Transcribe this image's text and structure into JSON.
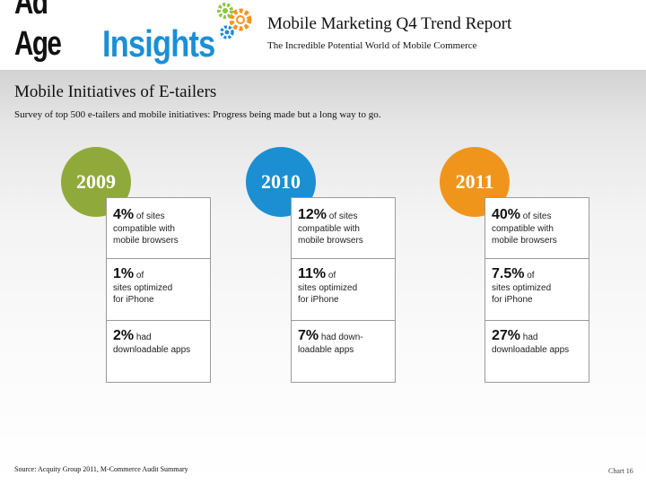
{
  "header": {
    "logo_part1": "Ad Age",
    "logo_part2": "Insights",
    "report_title": "Mobile Marketing Q4 Trend Report",
    "report_subtitle": "The Incredible Potential World of Mobile Commerce"
  },
  "colors": {
    "insights_blue": "#1a8fd6",
    "gear_green": "#8dc63f",
    "gear_orange": "#f7941d",
    "gear_blue": "#1a8fd6",
    "circle_2009": "#8faa3a",
    "circle_2010": "#1c8fd3",
    "circle_2011": "#f0951c"
  },
  "chart_data": {
    "type": "table",
    "title": "Mobile Initiatives of E-tailers",
    "subtitle": "Survey of top 500 e-tailers and mobile initiatives: Progress being made but a long way to go.",
    "categories": [
      "2009",
      "2010",
      "2011"
    ],
    "columns": [
      {
        "year": "2009",
        "cells": [
          {
            "value": "4%",
            "line1": "of sites",
            "rest": [
              "compatible with",
              "mobile browsers"
            ]
          },
          {
            "value": "1%",
            "line1": "of",
            "rest": [
              "sites optimized",
              "for iPhone"
            ]
          },
          {
            "value": "2%",
            "line1": "had",
            "rest": [
              "downloadable apps"
            ]
          }
        ]
      },
      {
        "year": "2010",
        "cells": [
          {
            "value": "12%",
            "line1": "of sites",
            "rest": [
              "compatible with",
              "mobile browsers"
            ]
          },
          {
            "value": "11%",
            "line1": "of",
            "rest": [
              "sites optimized",
              "for iPhone"
            ]
          },
          {
            "value": "7%",
            "line1": "had down-",
            "rest": [
              "loadable apps"
            ]
          }
        ]
      },
      {
        "year": "2011",
        "cells": [
          {
            "value": "40%",
            "line1": "of sites",
            "rest": [
              "compatible with",
              "mobile browsers"
            ]
          },
          {
            "value": "7.5%",
            "line1": "of",
            "rest": [
              "sites optimized",
              "for iPhone"
            ]
          },
          {
            "value": "27%",
            "line1": "had",
            "rest": [
              "downloadable apps"
            ]
          }
        ]
      }
    ],
    "series": [
      {
        "name": "Sites compatible with mobile browsers (%)",
        "values": [
          4,
          12,
          40
        ]
      },
      {
        "name": "Sites optimized for iPhone (%)",
        "values": [
          1,
          11,
          7.5
        ]
      },
      {
        "name": "Had downloadable apps (%)",
        "values": [
          2,
          7,
          27
        ]
      }
    ]
  },
  "footer": {
    "source": "Source: Acquity Group 2011, M-Commerce Audit Summary",
    "chart_label": "Chart 16"
  }
}
